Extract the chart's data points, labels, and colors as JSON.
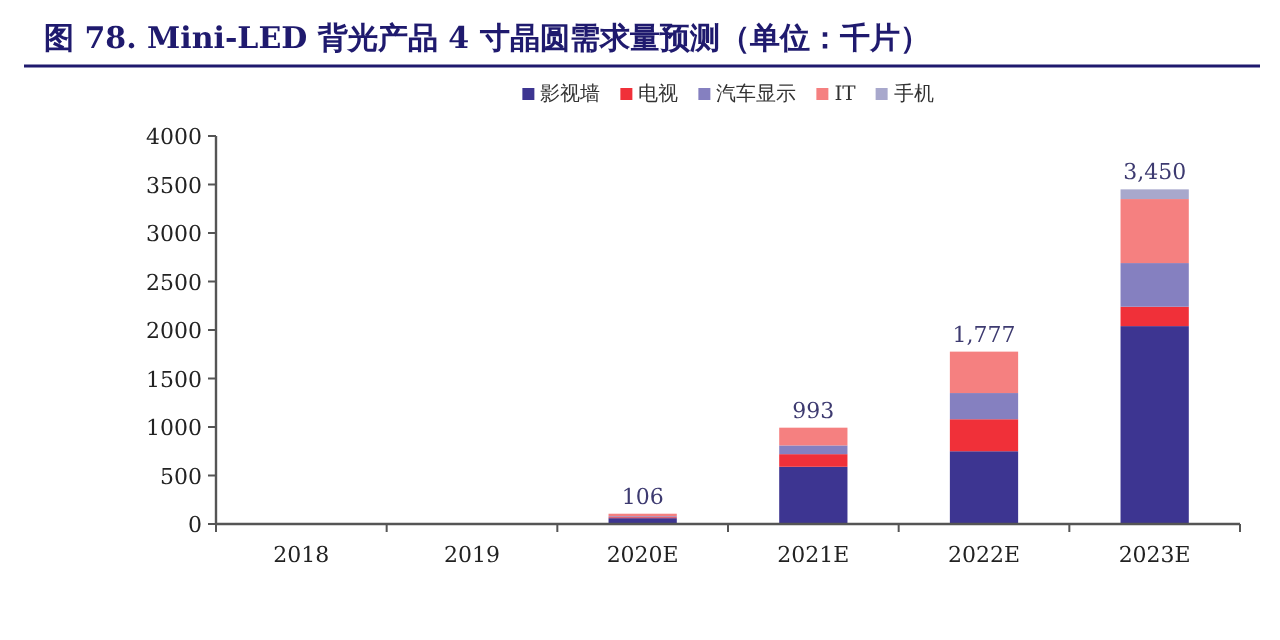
{
  "chart_data": {
    "type": "bar",
    "stacked": true,
    "title": "图 78. Mini-LED 背光产品 4 寸晶圆需求量预测（单位：千片）",
    "categories": [
      "2018",
      "2019",
      "2020E",
      "2021E",
      "2022E",
      "2023E"
    ],
    "series": [
      {
        "name": "影视墙",
        "color": "#3d3591",
        "values": [
          null,
          null,
          60,
          590,
          750,
          2040
        ]
      },
      {
        "name": "电视",
        "color": "#f03039",
        "values": [
          null,
          null,
          10,
          130,
          330,
          200
        ]
      },
      {
        "name": "汽车显示",
        "color": "#8580c0",
        "values": [
          null,
          null,
          10,
          90,
          270,
          450
        ]
      },
      {
        "name": "IT",
        "color": "#f58080",
        "values": [
          null,
          null,
          26,
          183,
          427,
          660
        ]
      },
      {
        "name": "手机",
        "color": "#a8a8cc",
        "values": [
          null,
          null,
          null,
          null,
          null,
          100
        ]
      }
    ],
    "totals": [
      null,
      null,
      "106",
      "993",
      "1,777",
      "3,450"
    ],
    "ylim": [
      0,
      4000
    ],
    "yticks": [
      0,
      500,
      1000,
      1500,
      2000,
      2500,
      3000,
      3500,
      4000
    ],
    "legend": "top"
  }
}
